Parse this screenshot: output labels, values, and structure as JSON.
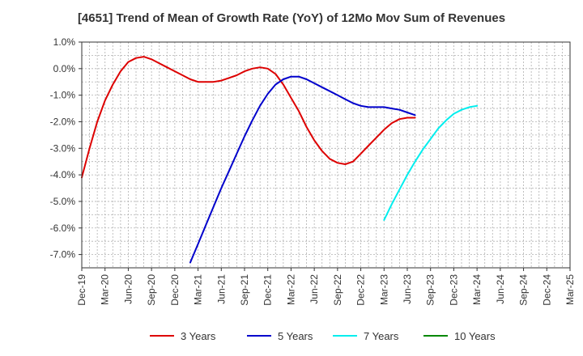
{
  "chart_data": {
    "type": "line",
    "title": "[4651]  Trend of Mean of Growth Rate (YoY) of 12Mo Mov Sum of Revenues",
    "xlabel": "",
    "ylabel": "",
    "ylim": [
      -7.5,
      1.0
    ],
    "yticks": [
      1.0,
      0.0,
      -1.0,
      -2.0,
      -3.0,
      -4.0,
      -5.0,
      -6.0,
      -7.0
    ],
    "ytick_labels": [
      "1.0%",
      "0.0%",
      "-1.0%",
      "-2.0%",
      "-3.0%",
      "-4.0%",
      "-5.0%",
      "-6.0%",
      "-7.0%"
    ],
    "x_categories": [
      "Dec-19",
      "Mar-20",
      "Jun-20",
      "Sep-20",
      "Dec-20",
      "Mar-21",
      "Jun-21",
      "Sep-21",
      "Dec-21",
      "Mar-22",
      "Jun-22",
      "Sep-22",
      "Dec-22",
      "Mar-23",
      "Jun-23",
      "Sep-23",
      "Dec-23",
      "Mar-24",
      "Jun-24",
      "Sep-24",
      "Dec-24",
      "Mar-25"
    ],
    "grid": true,
    "legend_position": "bottom",
    "series": [
      {
        "name": "3 Years",
        "color": "#dd0000",
        "start_index": 0,
        "values": [
          -4.1,
          -3.0,
          -2.0,
          -1.2,
          -0.6,
          -0.1,
          0.25,
          0.4,
          0.45,
          0.35,
          0.2,
          0.05,
          -0.1,
          -0.25,
          -0.4,
          -0.5,
          -0.5,
          -0.5,
          -0.45,
          -0.35,
          -0.25,
          -0.1,
          0.0,
          0.05,
          0.0,
          -0.2,
          -0.6,
          -1.1,
          -1.6,
          -2.2,
          -2.7,
          -3.1,
          -3.4,
          -3.55,
          -3.6,
          -3.5,
          -3.2,
          -2.9,
          -2.6,
          -2.3,
          -2.05,
          -1.9,
          -1.85,
          -1.85
        ]
      },
      {
        "name": "5 Years",
        "color": "#0000cc",
        "start_index": 14,
        "values": [
          -7.3,
          -6.6,
          -5.9,
          -5.2,
          -4.5,
          -3.85,
          -3.2,
          -2.55,
          -1.95,
          -1.4,
          -0.95,
          -0.6,
          -0.4,
          -0.3,
          -0.3,
          -0.4,
          -0.55,
          -0.7,
          -0.85,
          -1.0,
          -1.15,
          -1.3,
          -1.4,
          -1.45,
          -1.45,
          -1.45,
          -1.5,
          -1.55,
          -1.65,
          -1.75
        ]
      },
      {
        "name": "7 Years",
        "color": "#00eeee",
        "start_index": 39,
        "values": [
          -5.7,
          -5.1,
          -4.55,
          -4.0,
          -3.5,
          -3.05,
          -2.65,
          -2.25,
          -1.95,
          -1.7,
          -1.55,
          -1.45,
          -1.4
        ]
      },
      {
        "name": "10 Years",
        "color": "#008800",
        "start_index": 0,
        "values": []
      }
    ]
  }
}
